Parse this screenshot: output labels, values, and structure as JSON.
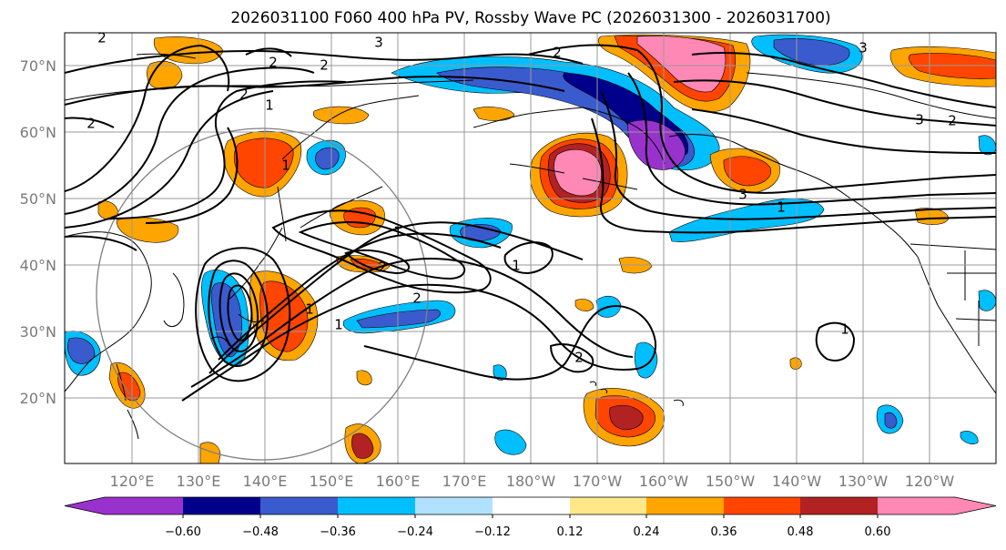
{
  "title": "2026031100 F060 400 hPa PV, Rossby Wave PC (2026031300 - 2026031700)",
  "lat_labels": [
    "70°N",
    "60°N",
    "50°N",
    "40°N",
    "30°N",
    "20°N"
  ],
  "lon_labels": [
    "120°E",
    "130°E",
    "140°E",
    "150°E",
    "160°E",
    "170°E",
    "180°W",
    "170°W",
    "160°W",
    "150°W",
    "140°W",
    "130°W",
    "120°W"
  ],
  "colorbar": {
    "colors": [
      "#9932cc",
      "#00008b",
      "#3a5bcd",
      "#00bfff",
      "#b0e2ff",
      "#ffffff",
      "#ffe78a",
      "#ffa500",
      "#ff4500",
      "#b22222",
      "#ff88b4"
    ],
    "tick_labels": [
      "−0.60",
      "−0.48",
      "−0.36",
      "−0.24",
      "−0.12",
      "0.12",
      "0.24",
      "0.36",
      "0.48",
      "0.60"
    ]
  },
  "contour_labels": [
    "2",
    "2",
    "2",
    "1",
    "2",
    "3",
    "1",
    "1",
    "2",
    "2",
    "1",
    "2",
    "3",
    "3",
    "1",
    "1",
    "2",
    "1",
    "3",
    "2",
    "1",
    "2"
  ],
  "chart_data": {
    "type": "heatmap",
    "title": "2026031100 F060 400 hPa PV, Rossby Wave PC (2026031300 - 2026031700)",
    "lat_ticks": [
      70,
      60,
      50,
      40,
      30,
      20
    ],
    "lon_ticks": [
      "120°E",
      "130°E",
      "140°E",
      "150°E",
      "160°E",
      "170°E",
      "180°W",
      "170°W",
      "160°W",
      "150°W",
      "140°W",
      "130°W",
      "120°W"
    ],
    "xlim": [
      "115°E",
      "115°W"
    ],
    "ylim": [
      10,
      75
    ],
    "grid": true,
    "colorbar_levels": [
      -0.6,
      -0.48,
      -0.36,
      -0.24,
      -0.12,
      0.12,
      0.24,
      0.36,
      0.48,
      0.6
    ],
    "colorbar_extend": "both",
    "contour_levels": [
      1,
      2,
      3
    ]
  }
}
